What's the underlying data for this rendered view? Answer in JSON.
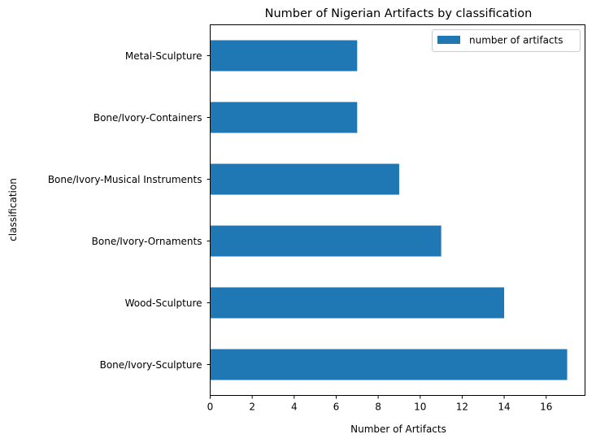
{
  "chart_data": {
    "type": "bar",
    "orientation": "horizontal",
    "title": "Number of Nigerian Artifacts by classification",
    "xlabel": "Number of Artifacts",
    "ylabel": "classification",
    "categories": [
      "Bone/Ivory-Sculpture",
      "Wood-Sculpture",
      "Bone/Ivory-Ornaments",
      "Bone/Ivory-Musical Instruments",
      "Bone/Ivory-Containers",
      "Metal-Sculpture"
    ],
    "series": [
      {
        "name": "number of artifacts",
        "values": [
          17,
          14,
          11,
          9,
          7,
          7
        ],
        "color": "#1f77b4"
      }
    ],
    "xlim": [
      0,
      17.85
    ],
    "xticks": [
      0,
      2,
      4,
      6,
      8,
      10,
      12,
      14,
      16
    ],
    "grid": false,
    "legend_position": "upper right"
  }
}
